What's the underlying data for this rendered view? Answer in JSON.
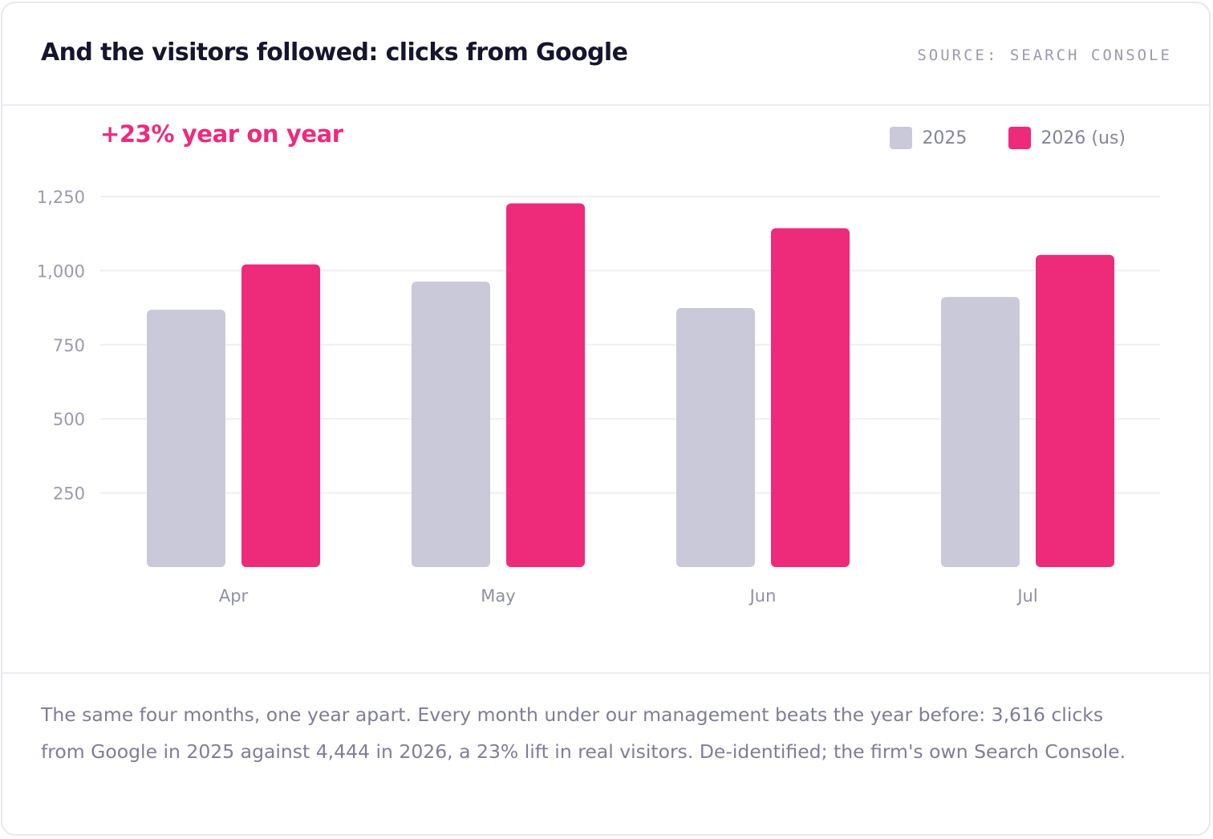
{
  "header": {
    "title": "And the visitors followed: clicks from Google",
    "source": "SOURCE: SEARCH CONSOLE"
  },
  "highlight": "+23% year on year",
  "legend": [
    {
      "label": "2025",
      "color": "#c9c9da"
    },
    {
      "label": "2026 (us)",
      "color": "#ee2a7b"
    }
  ],
  "chart_data": {
    "type": "bar",
    "title": "And the visitors followed: clicks from Google",
    "categories": [
      "Apr",
      "May",
      "Jun",
      "Jul"
    ],
    "series": [
      {
        "name": "2025",
        "values": [
          868,
          963,
          874,
          911
        ],
        "color": "#c9c9da"
      },
      {
        "name": "2026 (us)",
        "values": [
          1021,
          1227,
          1143,
          1053
        ],
        "color": "#ee2a7b"
      }
    ],
    "ylim": [
      0,
      1250
    ],
    "yticks": [
      250,
      500,
      750,
      1000,
      1250
    ],
    "ytick_labels": [
      "250",
      "500",
      "750",
      "1,000",
      "1,250"
    ],
    "grid": true,
    "legend_position": "top-right",
    "xlabel": "",
    "ylabel": ""
  },
  "footer": {
    "caption": "The same four months, one year apart. Every month under our management beats the year before: 3,616 clicks from Google in 2025 against 4,444 in 2026, a 23% lift in real visitors. De-identified; the firm's own Search Console."
  }
}
